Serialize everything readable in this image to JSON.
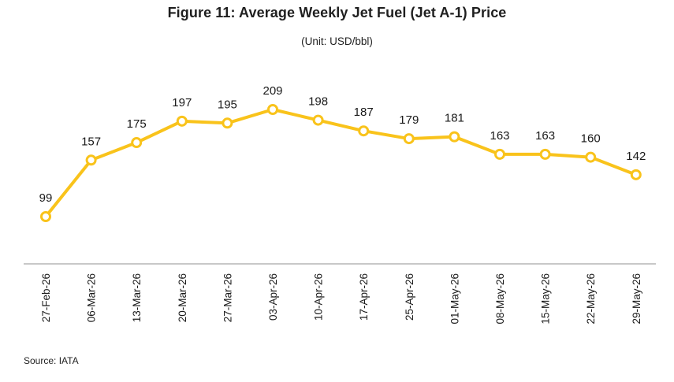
{
  "chart_data": {
    "type": "line",
    "title": "Figure 11: Average Weekly Jet Fuel (Jet A-1) Price",
    "subtitle": "(Unit: USD/bbl)",
    "xlabel": "",
    "ylabel": "",
    "categories": [
      "27-Feb-26",
      "06-Mar-26",
      "13-Mar-26",
      "20-Mar-26",
      "27-Mar-26",
      "03-Apr-26",
      "10-Apr-26",
      "17-Apr-26",
      "25-Apr-26",
      "01-May-26",
      "08-May-26",
      "15-May-26",
      "22-May-26",
      "29-May-26"
    ],
    "series": [
      {
        "values": [
          99,
          157,
          175,
          197,
          195,
          209,
          198,
          187,
          179,
          181,
          163,
          163,
          160,
          142
        ]
      }
    ],
    "data_labels": [
      "99",
      "157",
      "175",
      "197",
      "195",
      "209",
      "198",
      "187",
      "179",
      "181",
      "163",
      "163",
      "160",
      "142"
    ],
    "ylim": [
      40,
      240
    ],
    "grid": false,
    "legend": "none",
    "colors": {
      "line": "#F9C31B",
      "marker_fill": "#FFFFFF",
      "axis": "#A6A6A6"
    }
  },
  "source": "Source: IATA"
}
